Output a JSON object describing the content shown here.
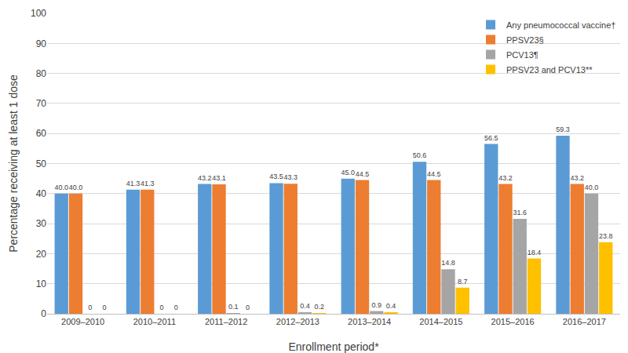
{
  "chart_data": {
    "type": "bar",
    "x_label": "Enrollment period*",
    "y_label": "Percentage receiving at least 1 dose",
    "categories": [
      "2009–2010",
      "2010–2011",
      "2011–2012",
      "2012–2013",
      "2013–2014",
      "2014–2015",
      "2015–2016",
      "2016–2017"
    ],
    "series": [
      {
        "name": "Any pneumococcal vaccine†",
        "color": "#5B9BD5",
        "values": [
          40.0,
          41.3,
          43.2,
          43.5,
          45.0,
          50.6,
          56.5,
          59.3
        ],
        "value_labels": [
          "40.0",
          "41.3",
          "43.2",
          "43.5",
          "45.0",
          "50.6",
          "56.5",
          "59.3"
        ]
      },
      {
        "name": "PPSV23§",
        "color": "#ED7D31",
        "values": [
          40.0,
          41.3,
          43.1,
          43.3,
          44.5,
          44.5,
          43.2,
          43.2
        ],
        "value_labels": [
          "40.0",
          "41.3",
          "43.1",
          "43.3",
          "44.5",
          "44.5",
          "43.2",
          "43.2"
        ]
      },
      {
        "name": "PCV13¶",
        "color": "#A5A5A5",
        "values": [
          0,
          0,
          0.1,
          0.4,
          0.9,
          14.8,
          31.6,
          40.0
        ],
        "value_labels": [
          "0",
          "0",
          "0.1",
          "0.4",
          "0.9",
          "14.8",
          "31.6",
          "40.0"
        ]
      },
      {
        "name": "PPSV23 and PCV13**",
        "color": "#FFC000",
        "values": [
          0,
          0,
          0,
          0.2,
          0.4,
          8.7,
          18.4,
          23.8
        ],
        "value_labels": [
          "0",
          "0",
          "0",
          "0.2",
          "0.4",
          "8.7",
          "18.4",
          "23.8"
        ]
      }
    ],
    "ylim": [
      0,
      100
    ],
    "yticks": [
      0,
      10,
      20,
      30,
      40,
      50,
      60,
      70,
      80,
      90,
      100
    ],
    "grid": true,
    "legend": "top-right",
    "data_labels": true
  }
}
